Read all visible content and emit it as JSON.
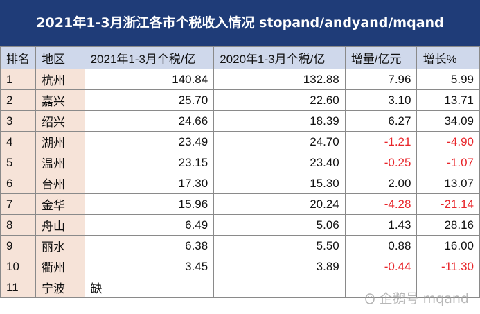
{
  "title": "2021年1-3月浙江各市个税收入情况 stopand/andyand/mqand",
  "headers": [
    "排名",
    "地区",
    "2021年1-3月个税/亿",
    "2020年1-3月个税/亿",
    "增量/亿元",
    "增长%"
  ],
  "rows": [
    {
      "rank": "1",
      "city": "杭州",
      "y2021": "140.84",
      "y2020": "132.88",
      "inc": "7.96",
      "pct": "5.99",
      "neg": false
    },
    {
      "rank": "2",
      "city": "嘉兴",
      "y2021": "25.70",
      "y2020": "22.60",
      "inc": "3.10",
      "pct": "13.71",
      "neg": false
    },
    {
      "rank": "3",
      "city": "绍兴",
      "y2021": "24.66",
      "y2020": "18.39",
      "inc": "6.27",
      "pct": "34.09",
      "neg": false
    },
    {
      "rank": "4",
      "city": "湖州",
      "y2021": "23.49",
      "y2020": "24.70",
      "inc": "-1.21",
      "pct": "-4.90",
      "neg": true
    },
    {
      "rank": "5",
      "city": "温州",
      "y2021": "23.15",
      "y2020": "23.40",
      "inc": "-0.25",
      "pct": "-1.07",
      "neg": true
    },
    {
      "rank": "6",
      "city": "台州",
      "y2021": "17.30",
      "y2020": "15.30",
      "inc": "2.00",
      "pct": "13.07",
      "neg": false
    },
    {
      "rank": "7",
      "city": "金华",
      "y2021": "15.96",
      "y2020": "20.24",
      "inc": "-4.28",
      "pct": "-21.14",
      "neg": true
    },
    {
      "rank": "8",
      "city": "舟山",
      "y2021": "6.49",
      "y2020": "5.06",
      "inc": "1.43",
      "pct": "28.16",
      "neg": false
    },
    {
      "rank": "9",
      "city": "丽水",
      "y2021": "6.38",
      "y2020": "5.50",
      "inc": "0.88",
      "pct": "16.00",
      "neg": false
    },
    {
      "rank": "10",
      "city": "衢州",
      "y2021": "3.45",
      "y2020": "3.89",
      "inc": "-0.44",
      "pct": "-11.30",
      "neg": true
    },
    {
      "rank": "11",
      "city": "宁波",
      "y2021": "缺",
      "y2020": "",
      "inc": "",
      "pct": "",
      "neg": false
    }
  ],
  "watermark": "企鹅号 mqand",
  "colors": {
    "title_bg": "#1f3c78",
    "header_bg": "#cfd8eb",
    "rank_bg": "#f6e3d8",
    "negative": "#e8262b"
  }
}
